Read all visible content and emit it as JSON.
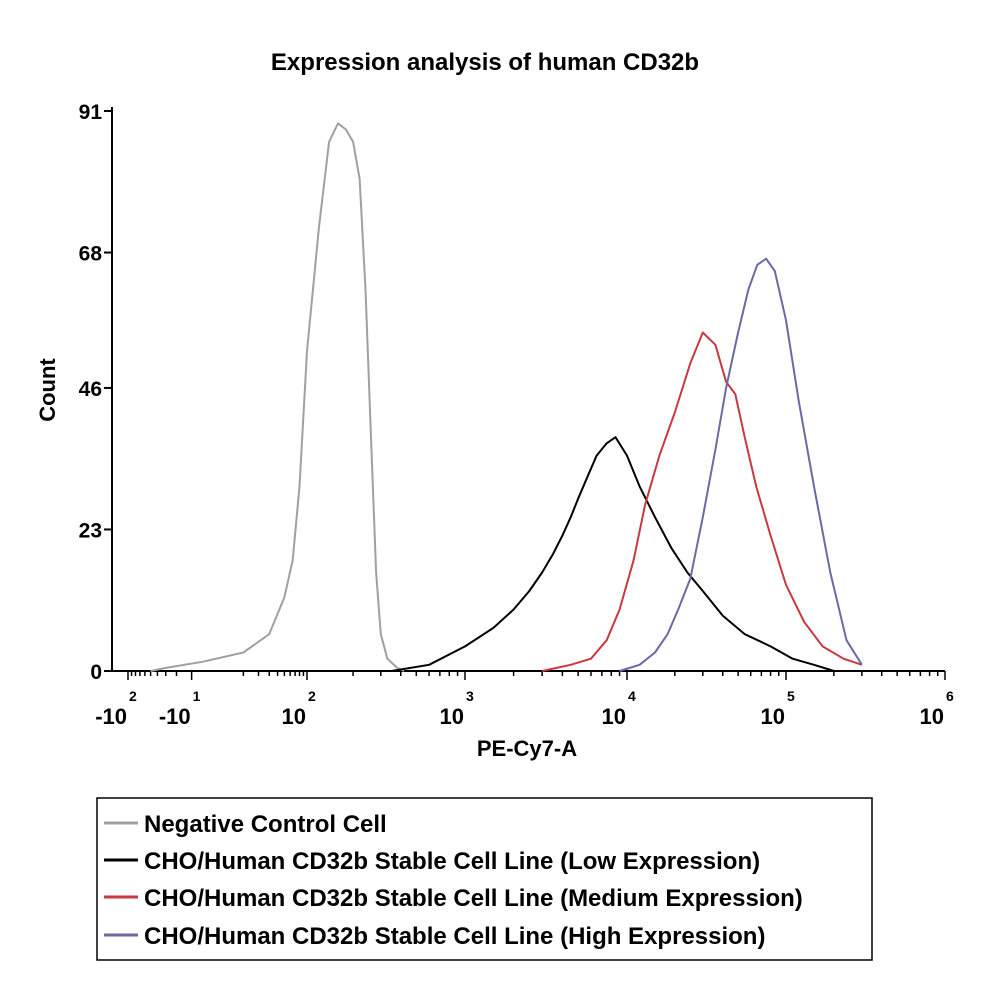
{
  "chart_data": {
    "type": "line",
    "title": "Expression analysis of human CD32b",
    "xlabel": "PE-Cy7-A",
    "ylabel": "Count",
    "x_scale": "biexponential",
    "xlim": [
      -200,
      1000000
    ],
    "ylim": [
      0,
      91
    ],
    "y_ticks": [
      {
        "value": 0,
        "label": "0"
      },
      {
        "value": 23,
        "label": "23"
      },
      {
        "value": 46,
        "label": "46"
      },
      {
        "value": 68,
        "label": "68"
      },
      {
        "value": 91,
        "label": "91"
      }
    ],
    "x_ticks": [
      {
        "value": -100,
        "base": "-10",
        "exp": "2"
      },
      {
        "value": -10,
        "base": "-10",
        "exp": "1"
      },
      {
        "value": 100,
        "base": "10",
        "exp": "2"
      },
      {
        "value": 1000,
        "base": "10",
        "exp": "3"
      },
      {
        "value": 10000,
        "base": "10",
        "exp": "4"
      },
      {
        "value": 100000,
        "base": "10",
        "exp": "5"
      },
      {
        "value": 1000000,
        "base": "10",
        "exp": "6"
      }
    ],
    "grid": false,
    "legend_position": "bottom",
    "series": [
      {
        "name": "Negative Control Cell",
        "color": "#a0a0a0",
        "x": [
          -50,
          -30,
          -5,
          10,
          30,
          50,
          65,
          80,
          100,
          120,
          140,
          160,
          180,
          200,
          220,
          240,
          260,
          280,
          300,
          330,
          380,
          420
        ],
        "y": [
          0,
          0.5,
          1.5,
          3,
          6,
          12,
          18,
          30,
          52,
          72,
          86,
          89,
          88,
          86,
          80,
          62,
          38,
          16,
          6,
          2,
          0.5,
          0
        ]
      },
      {
        "name": "CHO/Human CD32b Stable Cell Line (Low Expression)",
        "color": "#000000",
        "x": [
          350,
          600,
          1000,
          1500,
          2000,
          2500,
          3000,
          3500,
          4000,
          4500,
          5000,
          5800,
          6500,
          7500,
          8500,
          10000,
          12000,
          15000,
          19000,
          24000,
          30000,
          40000,
          55000,
          80000,
          110000,
          150000,
          200000
        ],
        "y": [
          0,
          1,
          4,
          7,
          10,
          13,
          16,
          19,
          22,
          25,
          28,
          32,
          35,
          37,
          38,
          35,
          30,
          25,
          20,
          16,
          13,
          9,
          6,
          4,
          2,
          1,
          0
        ]
      },
      {
        "name": "CHO/Human CD32b Stable Cell Line (Medium Expression)",
        "color": "#c8393f",
        "x": [
          3000,
          4500,
          6000,
          7500,
          9000,
          11000,
          13000,
          16000,
          20000,
          25000,
          30000,
          36000,
          42000,
          48000,
          55000,
          65000,
          80000,
          100000,
          130000,
          170000,
          230000,
          300000
        ],
        "y": [
          0,
          1,
          2,
          5,
          10,
          18,
          27,
          35,
          42,
          50,
          55,
          53,
          47,
          45,
          38,
          30,
          22,
          14,
          8,
          4,
          2,
          1
        ]
      },
      {
        "name": "CHO/Human CD32b Stable Cell Line (High Expression)",
        "color": "#6a6aa6",
        "x": [
          9000,
          12000,
          15000,
          18000,
          21000,
          25000,
          30000,
          36000,
          42000,
          50000,
          58000,
          66000,
          75000,
          85000,
          100000,
          120000,
          150000,
          190000,
          240000,
          300000
        ],
        "y": [
          0,
          1,
          3,
          6,
          10,
          15,
          25,
          36,
          46,
          55,
          62,
          66,
          67,
          65,
          57,
          44,
          30,
          16,
          5,
          1
        ]
      }
    ]
  },
  "legend": {
    "items": [
      {
        "label": "Negative Control Cell",
        "color": "#a0a0a0"
      },
      {
        "label": "CHO/Human CD32b Stable Cell Line (Low Expression)",
        "color": "#000000"
      },
      {
        "label": "CHO/Human CD32b Stable Cell Line (Medium Expression)",
        "color": "#c8393f"
      },
      {
        "label": "CHO/Human CD32b Stable Cell Line (High Expression)",
        "color": "#6a6aa6"
      }
    ]
  }
}
